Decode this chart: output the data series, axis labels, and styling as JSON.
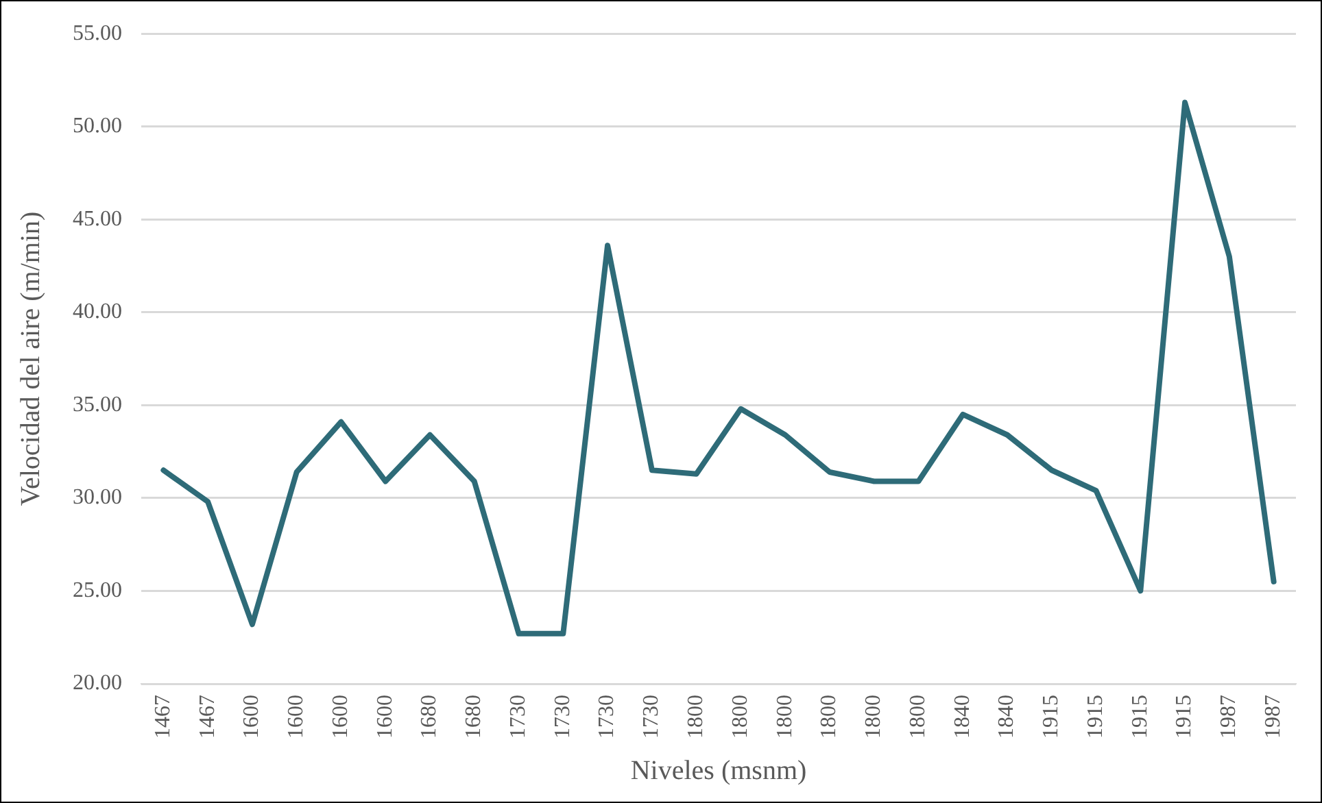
{
  "chart_data": {
    "type": "line",
    "xlabel": "Niveles (msnm)",
    "ylabel": "Velocidad del aire (m/min)",
    "categories": [
      "1467",
      "1467",
      "1600",
      "1600",
      "1600",
      "1600",
      "1680",
      "1680",
      "1730",
      "1730",
      "1730",
      "1730",
      "1800",
      "1800",
      "1800",
      "1800",
      "1800",
      "1800",
      "1840",
      "1840",
      "1915",
      "1915",
      "1915",
      "1915",
      "1987",
      "1987"
    ],
    "series": [
      {
        "color": "#2e6b78",
        "values": [
          31.5,
          29.8,
          23.2,
          31.4,
          34.1,
          30.9,
          33.4,
          30.9,
          22.7,
          22.7,
          43.6,
          31.5,
          31.3,
          34.8,
          33.4,
          31.4,
          30.9,
          30.9,
          34.5,
          33.4,
          31.5,
          30.4,
          25.0,
          51.3,
          43.0,
          25.5
        ]
      }
    ],
    "ylim": [
      20,
      55
    ],
    "yticks": [
      {
        "value": 20,
        "label": "20.00"
      },
      {
        "value": 25,
        "label": "25.00"
      },
      {
        "value": 30,
        "label": "30.00"
      },
      {
        "value": 35,
        "label": "35.00"
      },
      {
        "value": 40,
        "label": "40.00"
      },
      {
        "value": 45,
        "label": "45.00"
      },
      {
        "value": 50,
        "label": "50.00"
      },
      {
        "value": 55,
        "label": "55.00"
      }
    ],
    "grid": "y",
    "legend": false,
    "marker": "none",
    "line_style": "solid"
  }
}
